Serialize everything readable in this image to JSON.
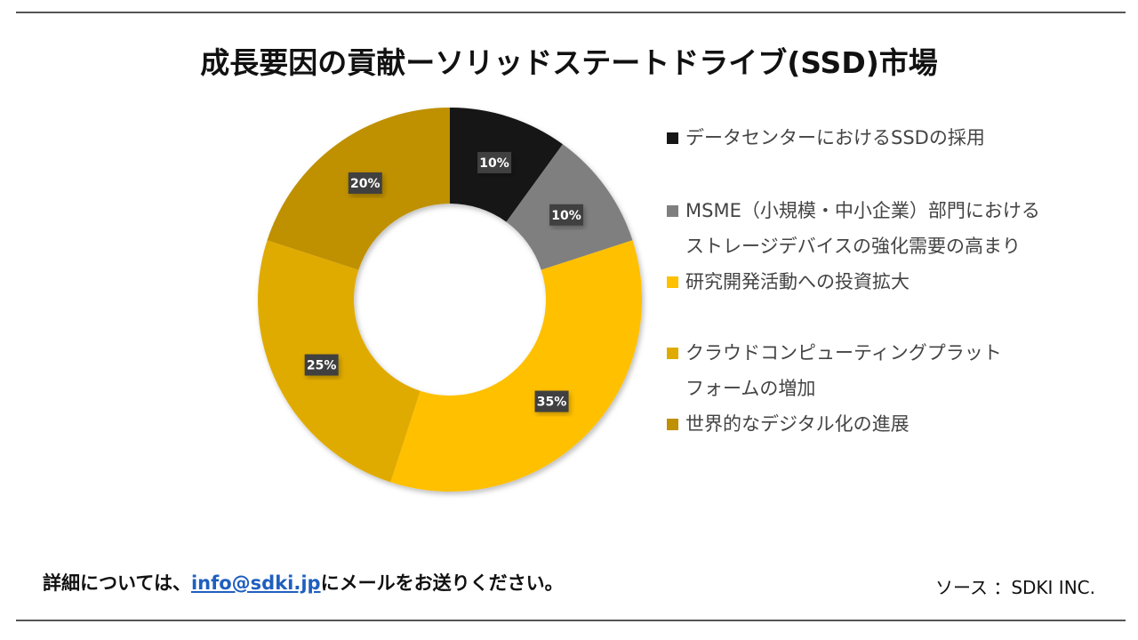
{
  "title": "成長要因の貢献ーソリッドステートドライブ(SSD)市場",
  "chart_data": {
    "type": "pie",
    "subtype": "donut",
    "title": "成長要因の貢献ーソリッドステートドライブ(SSD)市場",
    "categories": [
      "データセンターにおけるSSDの採用",
      "MSME（小規模・中小企業）部門におけるストレージデバイスの強化需要の高まり",
      "研究開発活動への投資拡大",
      "クラウドコンピューティングプラットフォームの増加",
      "世界的なデジタル化の進展"
    ],
    "values": [
      10,
      10,
      35,
      25,
      20
    ],
    "data_labels": [
      "10%",
      "10%",
      "35%",
      "25%",
      "20%"
    ],
    "colors": [
      "#161616",
      "#7f7f7f",
      "#ffc000",
      "#e0ab00",
      "#bf9000"
    ],
    "legend_placement": "right",
    "legend_lines": [
      [
        "データセンターにおけるSSDの採用"
      ],
      [
        "MSME（小規模・中小企業）部門における",
        "ストレージデバイスの強化需要の高まり"
      ],
      [
        "研究開発活動への投資拡大"
      ],
      [
        "クラウドコンピューティングプラット",
        "フォームの増加"
      ],
      [
        "世界的なデジタル化の進展"
      ]
    ]
  },
  "footer": {
    "contact_prefix": "詳細については、",
    "email": "info@sdki.jp",
    "contact_suffix": "にメールをお送りください。",
    "source": "ソース ：SDKI INC."
  }
}
